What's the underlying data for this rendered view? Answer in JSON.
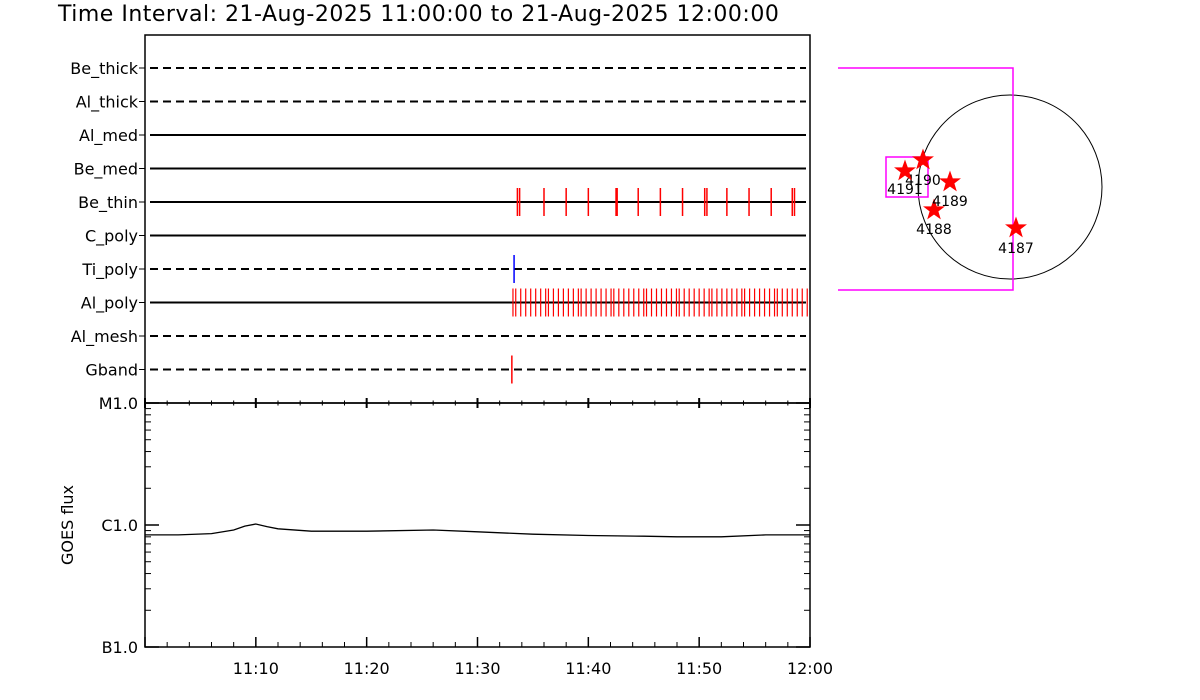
{
  "title": "Time Interval: 21-Aug-2025 11:00:00 to 21-Aug-2025 12:00:00",
  "chart_data": [
    {
      "type": "timeline",
      "x_range": [
        "11:00",
        "12:00"
      ],
      "rows": [
        {
          "name": "Be_thick",
          "style": "dashed",
          "events": []
        },
        {
          "name": "Al_thick",
          "style": "dashed",
          "events": []
        },
        {
          "name": "Al_med",
          "style": "solid",
          "events": []
        },
        {
          "name": "Be_med",
          "style": "solid",
          "events": []
        },
        {
          "name": "Be_thin",
          "style": "solid",
          "color": "#ff0000",
          "events": [
            "11:33.6",
            "11:33.8",
            "11:36.0",
            "11:38.0",
            "11:40.0",
            "11:42.5",
            "11:42.6",
            "11:44.5",
            "11:46.5",
            "11:48.5",
            "11:50.5",
            "11:50.7",
            "11:52.5",
            "11:54.5",
            "11:56.5",
            "11:58.4",
            "11:58.6"
          ]
        },
        {
          "name": "C_poly",
          "style": "solid",
          "events": []
        },
        {
          "name": "Ti_poly",
          "style": "dashed",
          "color": "#0000ff",
          "events": [
            "11:33.3"
          ]
        },
        {
          "name": "Al_poly",
          "style": "solid",
          "color": "#ff0000",
          "events": "dense 11:33-12:00"
        },
        {
          "name": "Al_mesh",
          "style": "dashed",
          "events": []
        },
        {
          "name": "Gband",
          "style": "dashed",
          "color": "#ff0000",
          "events": [
            "11:33.1"
          ]
        }
      ]
    },
    {
      "type": "line",
      "ylabel": "GOES flux",
      "yscale": "log",
      "yticks": [
        "B1.0",
        "C1.0",
        "M1.0"
      ],
      "ylim": [
        "B1.0",
        "M1.0"
      ],
      "xticks": [
        "11:10",
        "11:20",
        "11:30",
        "11:40",
        "11:50",
        "12:00"
      ],
      "xlim": [
        "11:00",
        "12:00"
      ],
      "series": [
        {
          "x": [
            0,
            3,
            6,
            8,
            9,
            10,
            11,
            12,
            15,
            20,
            26,
            30,
            35,
            40,
            45,
            48,
            52,
            56,
            60
          ],
          "y": [
            8.3e-07,
            8.3e-07,
            8.5e-07,
            9.1e-07,
            9.8e-07,
            1.02e-06,
            9.7e-07,
            9.3e-07,
            8.9e-07,
            8.9e-07,
            9.1e-07,
            8.8e-07,
            8.4e-07,
            8.2e-07,
            8.1e-07,
            8e-07,
            8e-07,
            8.3e-07,
            8.3e-07
          ]
        }
      ]
    },
    {
      "type": "scatter",
      "subtype": "solar-disk-map",
      "points": [
        {
          "label": "4187",
          "color": "#ff0000"
        },
        {
          "label": "4188",
          "color": "#ff0000"
        },
        {
          "label": "4189",
          "color": "#ff0000"
        },
        {
          "label": "4190",
          "color": "#ff0000"
        },
        {
          "label": "4191",
          "color": "#ff0000"
        }
      ],
      "boxes_color": "#ff00ff"
    }
  ]
}
